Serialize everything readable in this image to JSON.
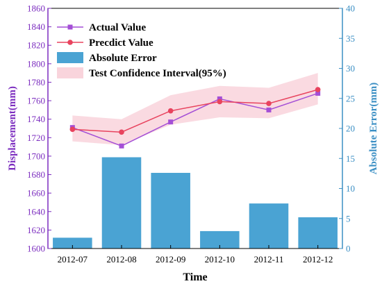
{
  "chart_data": {
    "type": "bar+line",
    "xlabel": "Time",
    "ylabel_left": "Displacement(mm)",
    "ylabel_right": "Absolute Error(mm)",
    "categories": [
      "2012-07",
      "2012-08",
      "2012-09",
      "2012-10",
      "2012-11",
      "2012-12"
    ],
    "ylim_left": [
      1600,
      1860
    ],
    "ylim_right": [
      0,
      40
    ],
    "yticks_left": [
      1600,
      1620,
      1640,
      1660,
      1680,
      1700,
      1720,
      1740,
      1760,
      1780,
      1800,
      1820,
      1840,
      1860
    ],
    "yticks_right": [
      0,
      5,
      10,
      15,
      20,
      25,
      30,
      35,
      40
    ],
    "series": [
      {
        "name": "Actual Value",
        "kind": "line",
        "axis": "left",
        "color": "#a44fd6",
        "marker": "square",
        "values": [
          1731,
          1711,
          1737,
          1762,
          1750,
          1768
        ]
      },
      {
        "name": "Precdict Value",
        "kind": "line",
        "axis": "left",
        "color": "#e8435e",
        "marker": "circle",
        "values": [
          1729,
          1726,
          1749,
          1759,
          1757,
          1772
        ]
      },
      {
        "name": "Absolute Error",
        "kind": "bar",
        "axis": "right",
        "color": "#4aa3d3",
        "values": [
          1.8,
          15.2,
          12.6,
          2.9,
          7.5,
          5.2
        ]
      },
      {
        "name": "Test Confidence Interval(95%)",
        "kind": "band",
        "axis": "left",
        "color": "#f9d4dc",
        "lower": [
          1716,
          1712,
          1734,
          1742,
          1741,
          1756
        ],
        "upper": [
          1744,
          1740,
          1766,
          1776,
          1774,
          1790
        ]
      }
    ],
    "legend_position": "top-left",
    "grid": false,
    "left_axis_color": "#7b2cbf",
    "right_axis_color": "#3b8fc4"
  }
}
